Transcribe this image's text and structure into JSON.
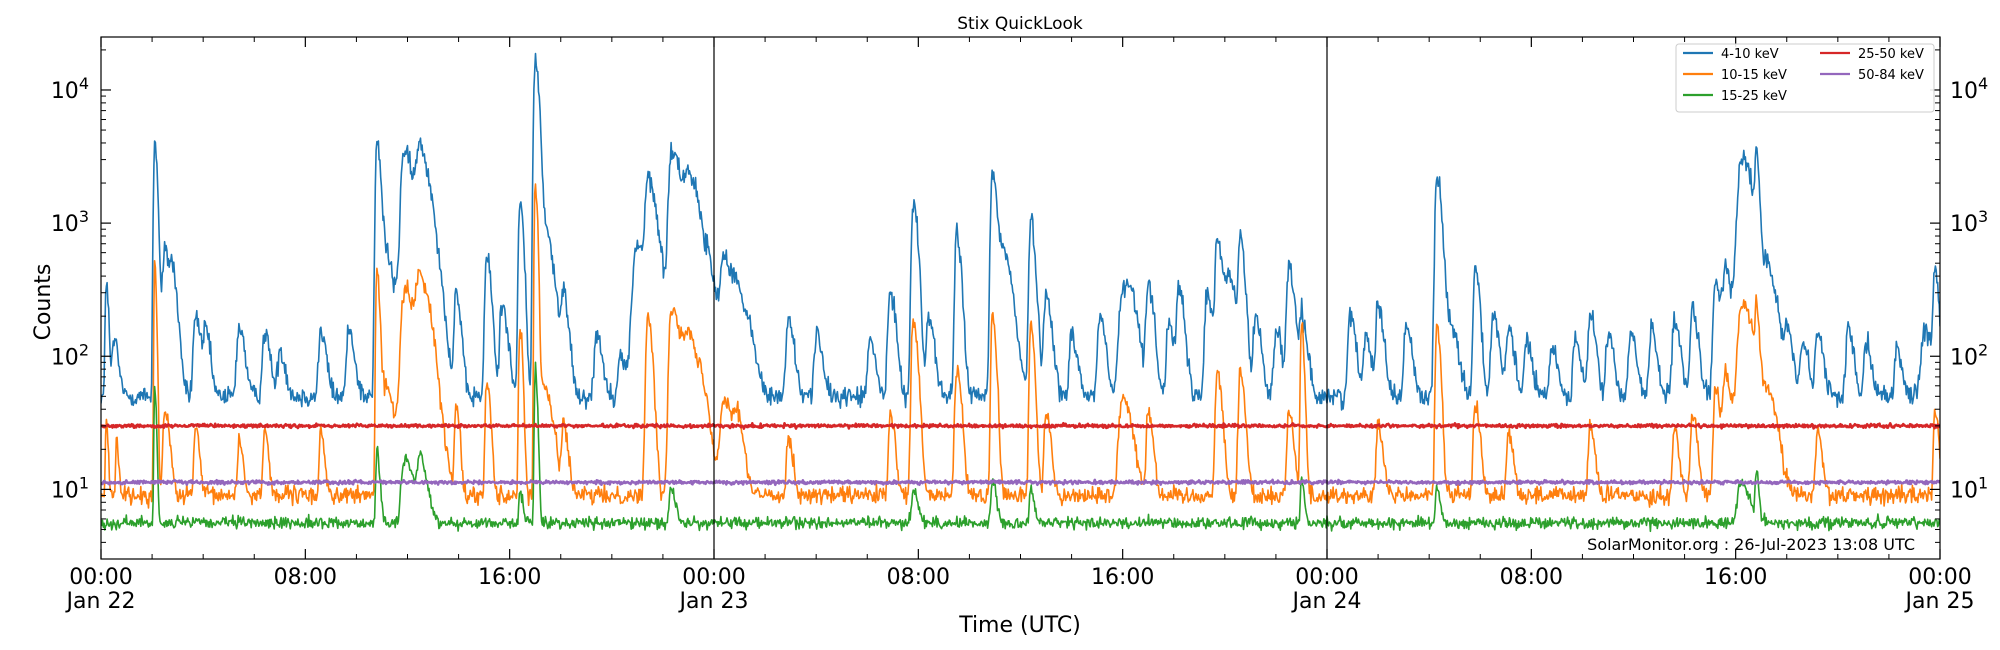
{
  "chart_data": {
    "type": "line",
    "title": "Stix QuickLook",
    "xlabel": "Time (UTC)",
    "ylabel": "Counts",
    "yscale": "log",
    "ylim": [
      3,
      25000
    ],
    "xlim_hours": [
      0,
      72
    ],
    "x_ticks": [
      {
        "hour": 0,
        "time": "00:00",
        "date": "Jan 22"
      },
      {
        "hour": 8,
        "time": "08:00",
        "date": ""
      },
      {
        "hour": 16,
        "time": "16:00",
        "date": ""
      },
      {
        "hour": 24,
        "time": "00:00",
        "date": "Jan 23"
      },
      {
        "hour": 32,
        "time": "08:00",
        "date": ""
      },
      {
        "hour": 40,
        "time": "16:00",
        "date": ""
      },
      {
        "hour": 48,
        "time": "00:00",
        "date": "Jan 24"
      },
      {
        "hour": 56,
        "time": "08:00",
        "date": ""
      },
      {
        "hour": 64,
        "time": "16:00",
        "date": ""
      },
      {
        "hour": 72,
        "time": "00:00",
        "date": "Jan 25"
      }
    ],
    "y_ticks": [
      {
        "value": 10,
        "base": "10",
        "exp": "1"
      },
      {
        "value": 100,
        "base": "10",
        "exp": "2"
      },
      {
        "value": 1000,
        "base": "10",
        "exp": "3"
      },
      {
        "value": 10000,
        "base": "10",
        "exp": "4"
      }
    ],
    "day_boundaries_hours": [
      24,
      48
    ],
    "legend_placement": "top-right",
    "annotation": "SolarMonitor.org : 26-Jul-2023 13:08 UTC",
    "series": [
      {
        "name": "4-10 keV",
        "color": "#1f77b4",
        "baseline": 50,
        "noise": 0.18,
        "peaks": [
          [
            0.2,
            380,
            0.05
          ],
          [
            0.5,
            130,
            0.1
          ],
          [
            2.1,
            4200,
            0.06
          ],
          [
            2.5,
            600,
            0.15
          ],
          [
            2.8,
            260,
            0.12
          ],
          [
            3.7,
            200,
            0.12
          ],
          [
            4.1,
            150,
            0.1
          ],
          [
            5.4,
            170,
            0.12
          ],
          [
            6.4,
            150,
            0.12
          ],
          [
            7.0,
            110,
            0.12
          ],
          [
            8.6,
            150,
            0.12
          ],
          [
            9.7,
            160,
            0.12
          ],
          [
            10.8,
            4000,
            0.08
          ],
          [
            11.1,
            600,
            0.2
          ],
          [
            11.8,
            1800,
            0.1
          ],
          [
            12.0,
            2300,
            0.3
          ],
          [
            12.5,
            2600,
            0.2
          ],
          [
            13.0,
            400,
            0.2
          ],
          [
            13.9,
            300,
            0.1
          ],
          [
            15.1,
            550,
            0.1
          ],
          [
            15.7,
            250,
            0.12
          ],
          [
            16.4,
            1400,
            0.08
          ],
          [
            17.0,
            17000,
            0.08
          ],
          [
            17.3,
            1000,
            0.2
          ],
          [
            18.1,
            270,
            0.12
          ],
          [
            19.4,
            150,
            0.12
          ],
          [
            20.3,
            100,
            0.12
          ],
          [
            21.0,
            700,
            0.25
          ],
          [
            21.4,
            1800,
            0.12
          ],
          [
            21.7,
            700,
            0.2
          ],
          [
            22.3,
            2600,
            0.12
          ],
          [
            22.6,
            2000,
            0.3
          ],
          [
            23.0,
            1200,
            0.2
          ],
          [
            23.4,
            400,
            0.2
          ],
          [
            23.8,
            300,
            0.2
          ],
          [
            24.4,
            550,
            0.2
          ],
          [
            24.9,
            250,
            0.2
          ],
          [
            25.4,
            120,
            0.15
          ],
          [
            26.9,
            190,
            0.12
          ],
          [
            28.0,
            150,
            0.12
          ],
          [
            30.1,
            130,
            0.12
          ],
          [
            30.9,
            300,
            0.12
          ],
          [
            31.8,
            1400,
            0.1
          ],
          [
            32.4,
            200,
            0.12
          ],
          [
            33.5,
            800,
            0.1
          ],
          [
            34.9,
            2300,
            0.1
          ],
          [
            35.3,
            600,
            0.2
          ],
          [
            36.4,
            1000,
            0.1
          ],
          [
            37.0,
            300,
            0.12
          ],
          [
            38.0,
            150,
            0.12
          ],
          [
            39.1,
            200,
            0.12
          ],
          [
            40.0,
            300,
            0.2
          ],
          [
            40.3,
            180,
            0.2
          ],
          [
            41.0,
            350,
            0.12
          ],
          [
            41.8,
            180,
            0.12
          ],
          [
            42.2,
            300,
            0.12
          ],
          [
            43.3,
            300,
            0.12
          ],
          [
            43.7,
            780,
            0.1
          ],
          [
            44.1,
            400,
            0.2
          ],
          [
            44.6,
            700,
            0.1
          ],
          [
            45.2,
            200,
            0.12
          ],
          [
            46.0,
            160,
            0.12
          ],
          [
            46.5,
            450,
            0.12
          ],
          [
            47.0,
            200,
            0.12
          ],
          [
            48.9,
            200,
            0.12
          ],
          [
            49.5,
            150,
            0.12
          ],
          [
            50.0,
            240,
            0.12
          ],
          [
            51.1,
            170,
            0.12
          ],
          [
            52.3,
            2200,
            0.1
          ],
          [
            52.7,
            200,
            0.2
          ],
          [
            53.8,
            450,
            0.1
          ],
          [
            54.5,
            200,
            0.12
          ],
          [
            55.1,
            160,
            0.12
          ],
          [
            55.8,
            130,
            0.12
          ],
          [
            56.8,
            120,
            0.12
          ],
          [
            57.7,
            130,
            0.12
          ],
          [
            58.3,
            200,
            0.12
          ],
          [
            59.0,
            140,
            0.12
          ],
          [
            59.9,
            150,
            0.12
          ],
          [
            60.7,
            160,
            0.12
          ],
          [
            61.6,
            180,
            0.12
          ],
          [
            62.3,
            220,
            0.12
          ],
          [
            63.2,
            350,
            0.12
          ],
          [
            63.6,
            450,
            0.15
          ],
          [
            64.2,
            2300,
            0.2
          ],
          [
            64.4,
            1200,
            0.3
          ],
          [
            64.8,
            2600,
            0.06
          ],
          [
            65.3,
            300,
            0.2
          ],
          [
            66.0,
            150,
            0.12
          ],
          [
            66.6,
            130,
            0.12
          ],
          [
            67.2,
            150,
            0.12
          ],
          [
            68.4,
            160,
            0.12
          ],
          [
            69.1,
            130,
            0.12
          ],
          [
            70.3,
            110,
            0.12
          ],
          [
            71.4,
            150,
            0.2
          ],
          [
            71.8,
            420,
            0.08
          ]
        ]
      },
      {
        "name": "10-15 keV",
        "color": "#ff7f0e",
        "baseline": 9,
        "noise": 0.15,
        "peaks": [
          [
            0.2,
            35,
            0.04
          ],
          [
            0.6,
            25,
            0.05
          ],
          [
            2.1,
            500,
            0.04
          ],
          [
            2.5,
            40,
            0.1
          ],
          [
            3.7,
            30,
            0.08
          ],
          [
            5.4,
            25,
            0.08
          ],
          [
            6.4,
            30,
            0.08
          ],
          [
            8.6,
            28,
            0.08
          ],
          [
            10.8,
            440,
            0.06
          ],
          [
            11.1,
            60,
            0.2
          ],
          [
            11.8,
            120,
            0.1
          ],
          [
            12.0,
            250,
            0.3
          ],
          [
            12.5,
            300,
            0.2
          ],
          [
            13.0,
            40,
            0.2
          ],
          [
            13.9,
            45,
            0.08
          ],
          [
            15.1,
            70,
            0.08
          ],
          [
            16.4,
            170,
            0.06
          ],
          [
            17.0,
            2000,
            0.05
          ],
          [
            17.3,
            60,
            0.2
          ],
          [
            18.1,
            30,
            0.1
          ],
          [
            21.4,
            200,
            0.1
          ],
          [
            22.3,
            180,
            0.1
          ],
          [
            22.6,
            150,
            0.3
          ],
          [
            23.0,
            60,
            0.2
          ],
          [
            23.5,
            40,
            0.2
          ],
          [
            24.4,
            50,
            0.2
          ],
          [
            24.9,
            30,
            0.15
          ],
          [
            26.9,
            25,
            0.1
          ],
          [
            30.9,
            35,
            0.1
          ],
          [
            31.8,
            180,
            0.1
          ],
          [
            33.5,
            80,
            0.1
          ],
          [
            34.9,
            200,
            0.08
          ],
          [
            36.4,
            170,
            0.08
          ],
          [
            37.0,
            40,
            0.1
          ],
          [
            40.0,
            50,
            0.2
          ],
          [
            41.0,
            40,
            0.1
          ],
          [
            43.7,
            80,
            0.1
          ],
          [
            44.6,
            75,
            0.1
          ],
          [
            46.5,
            40,
            0.1
          ],
          [
            47.0,
            170,
            0.06
          ],
          [
            50.0,
            30,
            0.1
          ],
          [
            52.3,
            170,
            0.08
          ],
          [
            53.8,
            45,
            0.1
          ],
          [
            55.1,
            28,
            0.1
          ],
          [
            58.3,
            30,
            0.1
          ],
          [
            61.6,
            28,
            0.1
          ],
          [
            62.3,
            40,
            0.1
          ],
          [
            63.2,
            60,
            0.1
          ],
          [
            63.6,
            70,
            0.15
          ],
          [
            64.2,
            160,
            0.2
          ],
          [
            64.4,
            120,
            0.3
          ],
          [
            64.8,
            150,
            0.06
          ],
          [
            65.3,
            40,
            0.2
          ],
          [
            67.2,
            28,
            0.1
          ],
          [
            71.8,
            40,
            0.08
          ]
        ]
      },
      {
        "name": "15-25 keV",
        "color": "#2ca02c",
        "baseline": 5.6,
        "noise": 0.1,
        "peaks": [
          [
            2.1,
            60,
            0.04
          ],
          [
            10.8,
            20,
            0.06
          ],
          [
            11.8,
            12,
            0.1
          ],
          [
            12.0,
            14,
            0.2
          ],
          [
            12.5,
            16,
            0.15
          ],
          [
            17.0,
            80,
            0.05
          ],
          [
            16.4,
            10,
            0.06
          ],
          [
            22.3,
            10,
            0.1
          ],
          [
            31.8,
            10,
            0.1
          ],
          [
            34.9,
            12,
            0.08
          ],
          [
            36.4,
            10,
            0.08
          ],
          [
            47.0,
            12,
            0.06
          ],
          [
            52.3,
            10,
            0.08
          ],
          [
            64.2,
            11,
            0.2
          ],
          [
            64.8,
            13,
            0.06
          ]
        ]
      },
      {
        "name": "25-50 keV",
        "color": "#d62728",
        "baseline": 30,
        "noise": 0.03,
        "peaks": []
      },
      {
        "name": "50-84 keV",
        "color": "#9467bd",
        "baseline": 11.3,
        "noise": 0.03,
        "peaks": []
      }
    ]
  }
}
